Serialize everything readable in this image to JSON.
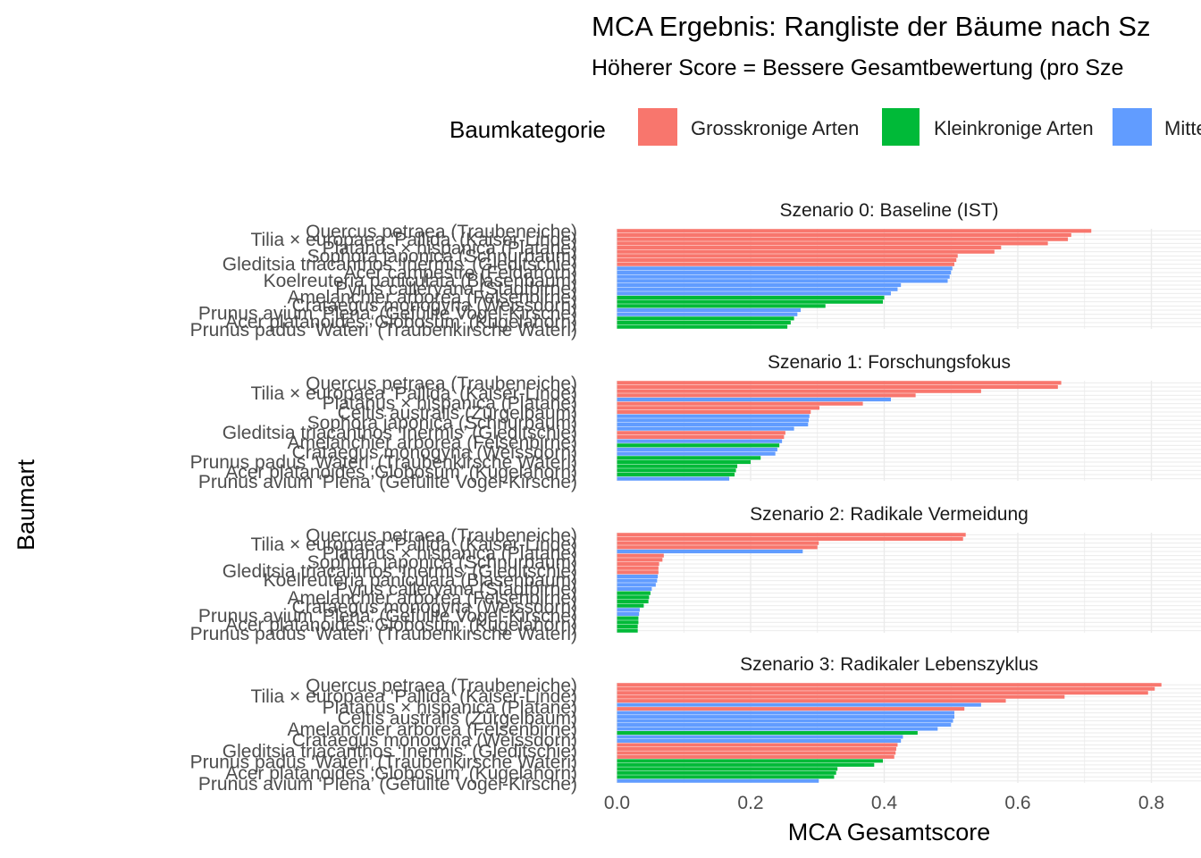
{
  "chart_data": {
    "type": "bar",
    "orientation": "horizontal",
    "title": "MCA Ergebnis: Rangliste der Bäume nach Sz",
    "subtitle": "Höherer Score = Bessere Gesamtbewertung (pro Sze",
    "xlabel": "MCA Gesamtscore",
    "ylabel": "Baumart",
    "xlim": [
      -0.04,
      0.87
    ],
    "xticks": [
      "0.0",
      "0.2",
      "0.4",
      "0.6",
      "0.8"
    ],
    "xtick_values": [
      0,
      0.2,
      0.4,
      0.6,
      0.8
    ],
    "grid": true,
    "legend": {
      "title": "Baumkategorie",
      "position": "top",
      "entries": [
        {
          "label": "Grosskronige Arten",
          "color": "#F8766D"
        },
        {
          "label": "Kleinkronige Arten",
          "color": "#00BA38"
        },
        {
          "label": "Mitte",
          "color": "#619CFF"
        }
      ]
    },
    "panels": [
      {
        "strip": "Szenario 0: Baseline (IST)",
        "visible_labels": [
          "Quercus petraea (Traubeneiche)",
          "Tilia × europaea ‘Pallida’ (Kaiser-Linde)",
          "Platanus × hispanica (Platane)",
          "Sophora japonica (Schnurbaum)",
          "Gleditsia triacanthos ‘Inermis’ (Gleditschie)",
          "Acer campestre (Feldahorn)",
          "Koelreuteria paniculata (Blasenbaum)",
          "Pyrus calleryana (Stadtbirne)",
          "Amelanchier arborea (Felsenbirne)",
          "Crataegus monogyna (Weissdorn)",
          "Prunus avium ‘Plena’ (Gefüllte Vogel-Kirsche)",
          "Acer platanoides ‘Globosum’ (Kugelahorn)",
          "Prunus padus ‘Wateri’ (Traubenkirsche Wateri)"
        ],
        "bars": [
          {
            "value": 0.71,
            "category": "Grosskronige Arten"
          },
          {
            "value": 0.68,
            "category": "Grosskronige Arten"
          },
          {
            "value": 0.675,
            "category": "Grosskronige Arten"
          },
          {
            "value": 0.645,
            "category": "Grosskronige Arten"
          },
          {
            "value": 0.575,
            "category": "Grosskronige Arten"
          },
          {
            "value": 0.565,
            "category": "Grosskronige Arten"
          },
          {
            "value": 0.51,
            "category": "Grosskronige Arten"
          },
          {
            "value": 0.508,
            "category": "Grosskronige Arten"
          },
          {
            "value": 0.505,
            "category": "Grosskronige Arten"
          },
          {
            "value": 0.502,
            "category": "Mittelkronige Arten"
          },
          {
            "value": 0.5,
            "category": "Mittelkronige Arten"
          },
          {
            "value": 0.498,
            "category": "Mittelkronige Arten"
          },
          {
            "value": 0.495,
            "category": "Mittelkronige Arten"
          },
          {
            "value": 0.425,
            "category": "Mittelkronige Arten"
          },
          {
            "value": 0.42,
            "category": "Mittelkronige Arten"
          },
          {
            "value": 0.41,
            "category": "Mittelkronige Arten"
          },
          {
            "value": 0.4,
            "category": "Kleinkronige Arten"
          },
          {
            "value": 0.398,
            "category": "Kleinkronige Arten"
          },
          {
            "value": 0.312,
            "category": "Kleinkronige Arten"
          },
          {
            "value": 0.275,
            "category": "Mittelkronige Arten"
          },
          {
            "value": 0.27,
            "category": "Mittelkronige Arten"
          },
          {
            "value": 0.265,
            "category": "Kleinkronige Arten"
          },
          {
            "value": 0.26,
            "category": "Kleinkronige Arten"
          },
          {
            "value": 0.255,
            "category": "Kleinkronige Arten"
          }
        ]
      },
      {
        "strip": "Szenario 1: Forschungsfokus",
        "visible_labels": [
          "Quercus petraea (Traubeneiche)",
          "Tilia × europaea ‘Pallida’ (Kaiser-Linde)",
          "Platanus × hispanica (Platane)",
          "Celtis australis (Zürgelbaum)",
          "Sophora japonica (Schnurbaum)",
          "Gleditsia triacanthos ‘Inermis’ (Gleditschie)",
          "Amelanchier arborea (Felsenbirne)",
          "Crataegus monogyna (Weissdorn)",
          "Prunus padus ‘Wateri’ (Traubenkirsche Wateri)",
          "Acer platanoides ‘Globosum’ (Kugelahorn)",
          "Prunus avium ‘Plena’ (Gefüllte Vogel-Kirsche)"
        ],
        "bars": [
          {
            "value": 0.665,
            "category": "Grosskronige Arten"
          },
          {
            "value": 0.66,
            "category": "Grosskronige Arten"
          },
          {
            "value": 0.545,
            "category": "Grosskronige Arten"
          },
          {
            "value": 0.447,
            "category": "Grosskronige Arten"
          },
          {
            "value": 0.41,
            "category": "Mittelkronige Arten"
          },
          {
            "value": 0.368,
            "category": "Grosskronige Arten"
          },
          {
            "value": 0.303,
            "category": "Grosskronige Arten"
          },
          {
            "value": 0.29,
            "category": "Grosskronige Arten"
          },
          {
            "value": 0.288,
            "category": "Mittelkronige Arten"
          },
          {
            "value": 0.287,
            "category": "Mittelkronige Arten"
          },
          {
            "value": 0.286,
            "category": "Mittelkronige Arten"
          },
          {
            "value": 0.265,
            "category": "Mittelkronige Arten"
          },
          {
            "value": 0.252,
            "category": "Grosskronige Arten"
          },
          {
            "value": 0.25,
            "category": "Grosskronige Arten"
          },
          {
            "value": 0.247,
            "category": "Mittelkronige Arten"
          },
          {
            "value": 0.243,
            "category": "Kleinkronige Arten"
          },
          {
            "value": 0.24,
            "category": "Mittelkronige Arten"
          },
          {
            "value": 0.237,
            "category": "Mittelkronige Arten"
          },
          {
            "value": 0.215,
            "category": "Kleinkronige Arten"
          },
          {
            "value": 0.2,
            "category": "Kleinkronige Arten"
          },
          {
            "value": 0.18,
            "category": "Kleinkronige Arten"
          },
          {
            "value": 0.178,
            "category": "Kleinkronige Arten"
          },
          {
            "value": 0.176,
            "category": "Kleinkronige Arten"
          },
          {
            "value": 0.168,
            "category": "Mittelkronige Arten"
          }
        ]
      },
      {
        "strip": "Szenario 2: Radikale Vermeidung",
        "visible_labels": [
          "Quercus petraea (Traubeneiche)",
          "Tilia × europaea ‘Pallida’ (Kaiser-Linde)",
          "Platanus × hispanica (Platane)",
          "Sophora japonica (Schnurbaum)",
          "Gleditsia triacanthos ‘Inermis’ (Gleditschie)",
          "Koelreuteria paniculata (Blasenbaum)",
          "Pyrus calleryana (Stadtbirne)",
          "Amelanchier arborea (Felsenbirne)",
          "Crataegus monogyna (Weissdorn)",
          "Prunus avium ‘Plena’ (Gefüllte Vogel-Kirsche)",
          "Acer platanoides ‘Globosum’ (Kugelahorn)",
          "Prunus padus ‘Wateri’ (Traubenkirsche Wateri)"
        ],
        "bars": [
          {
            "value": 0.522,
            "category": "Grosskronige Arten"
          },
          {
            "value": 0.518,
            "category": "Grosskronige Arten"
          },
          {
            "value": 0.302,
            "category": "Grosskronige Arten"
          },
          {
            "value": 0.3,
            "category": "Grosskronige Arten"
          },
          {
            "value": 0.278,
            "category": "Mittelkronige Arten"
          },
          {
            "value": 0.07,
            "category": "Grosskronige Arten"
          },
          {
            "value": 0.068,
            "category": "Grosskronige Arten"
          },
          {
            "value": 0.063,
            "category": "Grosskronige Arten"
          },
          {
            "value": 0.062,
            "category": "Grosskronige Arten"
          },
          {
            "value": 0.062,
            "category": "Grosskronige Arten"
          },
          {
            "value": 0.061,
            "category": "Mittelkronige Arten"
          },
          {
            "value": 0.06,
            "category": "Mittelkronige Arten"
          },
          {
            "value": 0.058,
            "category": "Mittelkronige Arten"
          },
          {
            "value": 0.052,
            "category": "Mittelkronige Arten"
          },
          {
            "value": 0.05,
            "category": "Kleinkronige Arten"
          },
          {
            "value": 0.048,
            "category": "Kleinkronige Arten"
          },
          {
            "value": 0.047,
            "category": "Kleinkronige Arten"
          },
          {
            "value": 0.04,
            "category": "Kleinkronige Arten"
          },
          {
            "value": 0.034,
            "category": "Mittelkronige Arten"
          },
          {
            "value": 0.033,
            "category": "Mittelkronige Arten"
          },
          {
            "value": 0.032,
            "category": "Kleinkronige Arten"
          },
          {
            "value": 0.032,
            "category": "Kleinkronige Arten"
          },
          {
            "value": 0.031,
            "category": "Kleinkronige Arten"
          },
          {
            "value": 0.031,
            "category": "Kleinkronige Arten"
          }
        ]
      },
      {
        "strip": "Szenario 3: Radikaler Lebenszyklus",
        "visible_labels": [
          "Quercus petraea (Traubeneiche)",
          "Tilia × europaea ‘Pallida’ (Kaiser-Linde)",
          "Platanus × hispanica (Platane)",
          "Celtis australis (Zürgelbaum)",
          "Amelanchier arborea (Felsenbirne)",
          "Crataegus monogyna (Weissdorn)",
          "Gleditsia triacanthos ‘Inermis’ (Gleditschie)",
          "Prunus padus ‘Wateri’ (Traubenkirsche Wateri)",
          "Acer platanoides ‘Globosum’ (Kugelahorn)",
          "Prunus avium ‘Plena’ (Gefüllte Vogel-Kirsche)"
        ],
        "bars": [
          {
            "value": 0.815,
            "category": "Grosskronige Arten"
          },
          {
            "value": 0.805,
            "category": "Grosskronige Arten"
          },
          {
            "value": 0.795,
            "category": "Grosskronige Arten"
          },
          {
            "value": 0.67,
            "category": "Grosskronige Arten"
          },
          {
            "value": 0.582,
            "category": "Grosskronige Arten"
          },
          {
            "value": 0.545,
            "category": "Mittelkronige Arten"
          },
          {
            "value": 0.52,
            "category": "Grosskronige Arten"
          },
          {
            "value": 0.505,
            "category": "Mittelkronige Arten"
          },
          {
            "value": 0.505,
            "category": "Mittelkronige Arten"
          },
          {
            "value": 0.503,
            "category": "Mittelkronige Arten"
          },
          {
            "value": 0.5,
            "category": "Mittelkronige Arten"
          },
          {
            "value": 0.48,
            "category": "Mittelkronige Arten"
          },
          {
            "value": 0.45,
            "category": "Kleinkronige Arten"
          },
          {
            "value": 0.428,
            "category": "Mittelkronige Arten"
          },
          {
            "value": 0.425,
            "category": "Mittelkronige Arten"
          },
          {
            "value": 0.42,
            "category": "Grosskronige Arten"
          },
          {
            "value": 0.418,
            "category": "Grosskronige Arten"
          },
          {
            "value": 0.417,
            "category": "Grosskronige Arten"
          },
          {
            "value": 0.415,
            "category": "Grosskronige Arten"
          },
          {
            "value": 0.398,
            "category": "Kleinkronige Arten"
          },
          {
            "value": 0.385,
            "category": "Kleinkronige Arten"
          },
          {
            "value": 0.33,
            "category": "Kleinkronige Arten"
          },
          {
            "value": 0.328,
            "category": "Kleinkronige Arten"
          },
          {
            "value": 0.325,
            "category": "Kleinkronige Arten"
          },
          {
            "value": 0.302,
            "category": "Mittelkronige Arten"
          }
        ]
      }
    ]
  },
  "colors": {
    "Grosskronige Arten": "#F8766D",
    "Kleinkronige Arten": "#00BA38",
    "Mittelkronige Arten": "#619CFF"
  }
}
